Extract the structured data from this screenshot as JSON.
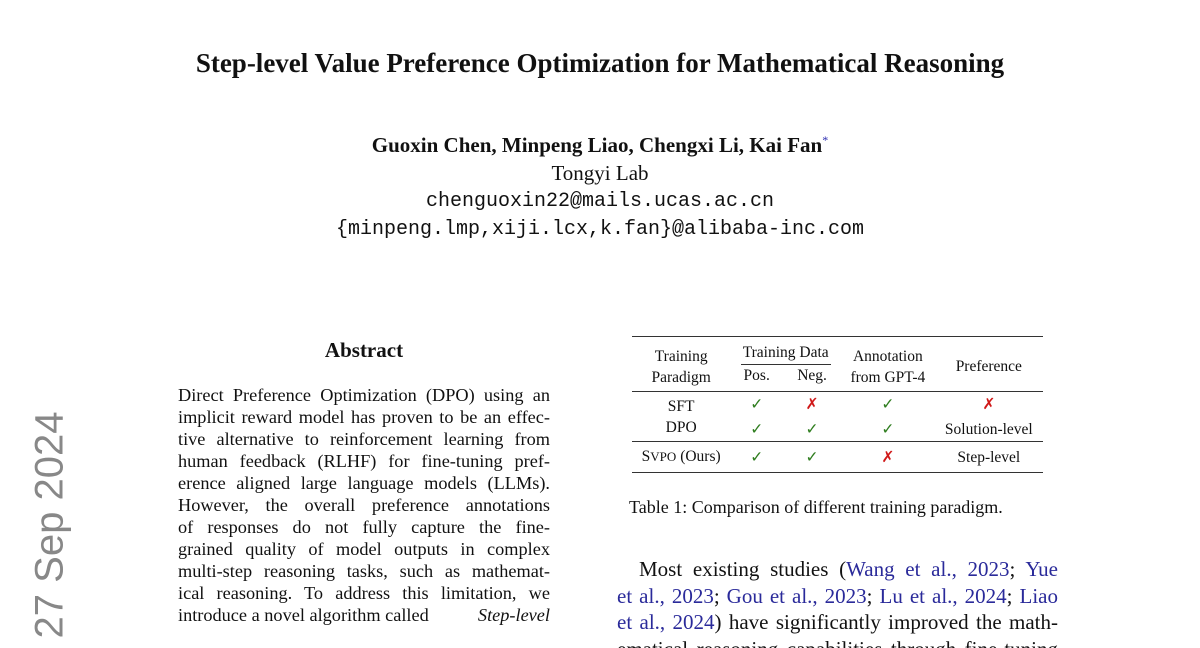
{
  "title": "Step-level Value Preference Optimization for Mathematical Reasoning",
  "authors": "Guoxin Chen, Minpeng Liao, Chengxi Li, Kai Fan",
  "author_mark": "*",
  "affiliation": "Tongyi Lab",
  "emails": [
    "chenguoxin22@mails.ucas.ac.cn",
    "{minpeng.lmp,xiji.lcx,k.fan}@alibaba-inc.com"
  ],
  "arxiv_stamp": "27 Sep 2024",
  "abstract": {
    "heading": "Abstract",
    "lines": [
      "Direct Preference Optimization (DPO) using an",
      "implicit reward model has proven to be an effec-",
      "tive alternative to reinforcement learning from",
      "human feedback (RLHF) for fine-tuning pref-",
      "erence aligned large language models (LLMs).",
      "However, the overall preference annotations",
      "of responses do not fully capture the fine-",
      "grained quality of model outputs in complex",
      "multi-step reasoning tasks, such as mathemat-",
      "ical reasoning. To address this limitation, we",
      "introduce a novel algorithm called "
    ],
    "last_italic": "Step-level"
  },
  "table": {
    "headers": {
      "paradigm": [
        "Training",
        "Paradigm"
      ],
      "data": "Training Data",
      "pos": "Pos.",
      "neg": "Neg.",
      "annotation": [
        "Annotation",
        "from GPT-4"
      ],
      "preference": "Preference"
    },
    "rows": [
      {
        "name": "SFT",
        "pos": "✓",
        "neg": "✗",
        "ann": "✓",
        "pref": "✗"
      },
      {
        "name": "DPO",
        "pos": "✓",
        "neg": "✓",
        "ann": "✓",
        "pref": "Solution-level"
      },
      {
        "name_s": "S",
        "name_sc": "VPO",
        "name_rest": " (Ours)",
        "pos": "✓",
        "neg": "✓",
        "ann": "✗",
        "pref": "Step-level"
      }
    ],
    "caption": "Table 1: Comparison of different training paradigm."
  },
  "intro": {
    "l1a": "Most existing studies (",
    "l1c": "Wang et al., 2023",
    "l1d": "; ",
    "l1e": "Yue",
    "l2a": "et al., 2023",
    "l2b": "; ",
    "l2c": "Gou et al., 2023",
    "l2d": "; ",
    "l2e": "Lu et al., 2024",
    "l2f": "; ",
    "l2g": "Liao",
    "l3a": "et al., 2024",
    "l3b": ") have significantly improved the math-",
    "l4": "ematical reasoning capabilities through fine-tuning"
  }
}
